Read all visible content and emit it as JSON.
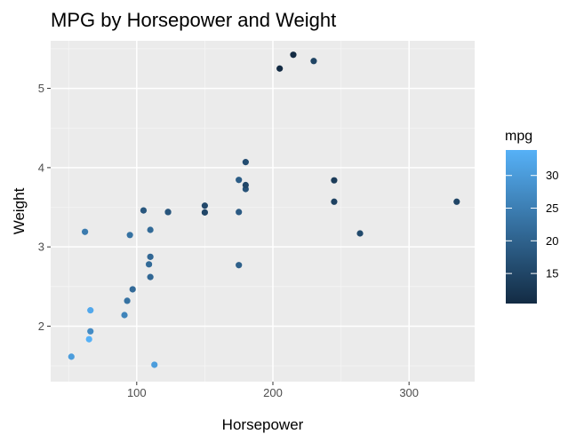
{
  "chart_data": {
    "type": "scatter",
    "title": "MPG by Horsepower and Weight",
    "xlabel": "Horsepower",
    "ylabel": "Weight",
    "xlim": [
      36.8,
      348.2
    ],
    "ylim": [
      1.3,
      5.6
    ],
    "x_ticks": [
      100,
      200,
      300
    ],
    "x_minor_ticks": [
      50,
      150,
      250
    ],
    "y_ticks": [
      2,
      3,
      4,
      5
    ],
    "y_minor_ticks": [
      1.5,
      2.5,
      3.5,
      4.5,
      5.5
    ],
    "grid": true,
    "legend": {
      "title": "mpg",
      "placement": "right",
      "range": [
        10.4,
        33.9
      ],
      "ticks": [
        15,
        20,
        25,
        30
      ],
      "color_low": "#132B43",
      "color_high": "#56B1F7"
    },
    "points": [
      {
        "x": 110,
        "y": 2.62,
        "mpg": 21.0
      },
      {
        "x": 110,
        "y": 2.875,
        "mpg": 21.0
      },
      {
        "x": 93,
        "y": 2.32,
        "mpg": 22.8
      },
      {
        "x": 110,
        "y": 3.215,
        "mpg": 21.4
      },
      {
        "x": 175,
        "y": 3.44,
        "mpg": 18.7
      },
      {
        "x": 105,
        "y": 3.46,
        "mpg": 18.1
      },
      {
        "x": 245,
        "y": 3.57,
        "mpg": 14.3
      },
      {
        "x": 62,
        "y": 3.19,
        "mpg": 24.4
      },
      {
        "x": 95,
        "y": 3.15,
        "mpg": 22.8
      },
      {
        "x": 123,
        "y": 3.44,
        "mpg": 19.2
      },
      {
        "x": 123,
        "y": 3.44,
        "mpg": 17.8
      },
      {
        "x": 180,
        "y": 4.07,
        "mpg": 16.4
      },
      {
        "x": 180,
        "y": 3.73,
        "mpg": 17.3
      },
      {
        "x": 180,
        "y": 3.78,
        "mpg": 15.2
      },
      {
        "x": 205,
        "y": 5.25,
        "mpg": 10.4
      },
      {
        "x": 215,
        "y": 5.424,
        "mpg": 10.4
      },
      {
        "x": 230,
        "y": 5.345,
        "mpg": 14.7
      },
      {
        "x": 66,
        "y": 2.2,
        "mpg": 32.4
      },
      {
        "x": 52,
        "y": 1.615,
        "mpg": 30.4
      },
      {
        "x": 65,
        "y": 1.835,
        "mpg": 33.9
      },
      {
        "x": 97,
        "y": 2.465,
        "mpg": 21.5
      },
      {
        "x": 150,
        "y": 3.52,
        "mpg": 15.5
      },
      {
        "x": 150,
        "y": 3.435,
        "mpg": 15.2
      },
      {
        "x": 245,
        "y": 3.84,
        "mpg": 13.3
      },
      {
        "x": 175,
        "y": 3.845,
        "mpg": 19.2
      },
      {
        "x": 66,
        "y": 1.935,
        "mpg": 27.3
      },
      {
        "x": 91,
        "y": 2.14,
        "mpg": 26.0
      },
      {
        "x": 113,
        "y": 1.513,
        "mpg": 30.4
      },
      {
        "x": 264,
        "y": 3.17,
        "mpg": 15.8
      },
      {
        "x": 175,
        "y": 2.77,
        "mpg": 19.7
      },
      {
        "x": 335,
        "y": 3.57,
        "mpg": 15.0
      },
      {
        "x": 109,
        "y": 2.78,
        "mpg": 21.4
      }
    ]
  }
}
